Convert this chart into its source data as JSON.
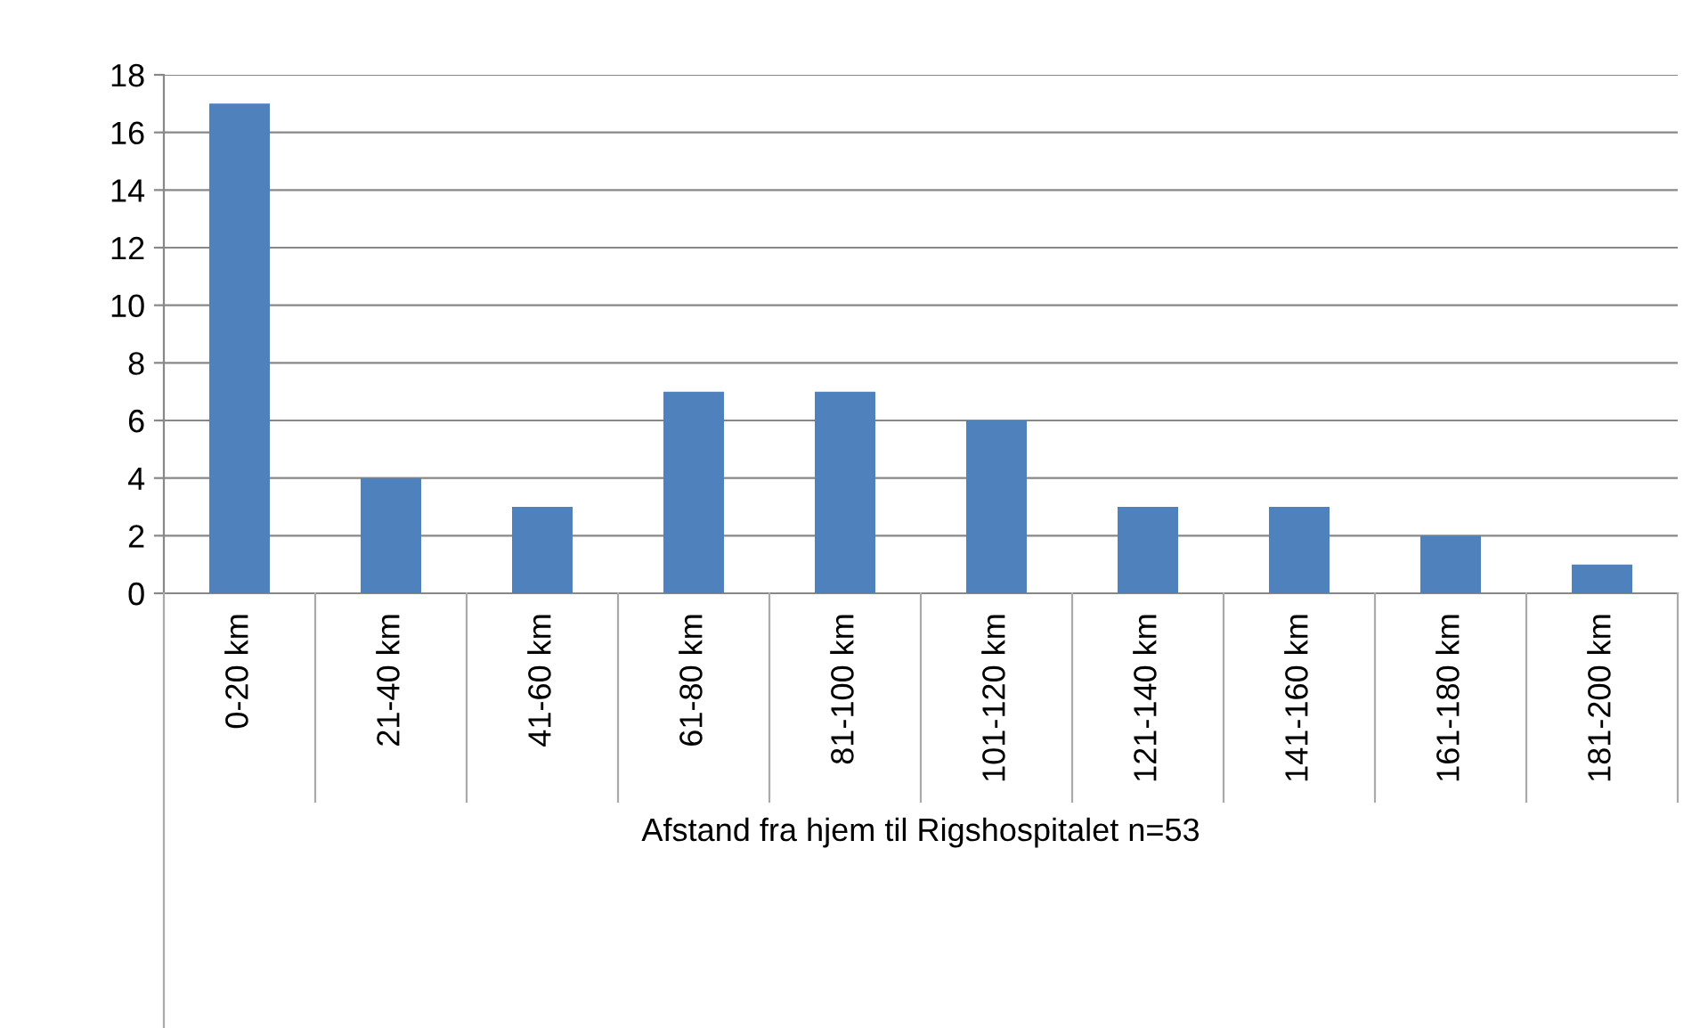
{
  "chart_data": {
    "type": "bar",
    "xlabel": "Afstand fra hjem til Rigshospitalet n=53",
    "categories": [
      "0-20 km",
      "21-40 km",
      "41-60 km",
      "61-80 km",
      "81-100 km",
      "101-120 km",
      "121-140 km",
      "141-160 km",
      "161-180 km",
      "181-200 km"
    ],
    "values": [
      17,
      4,
      3,
      7,
      7,
      6,
      3,
      3,
      2,
      1
    ],
    "color": "#4f81bd",
    "ylim": [
      0,
      18
    ],
    "yticks": [
      0,
      2,
      4,
      6,
      8,
      10,
      12,
      14,
      16,
      18
    ],
    "grid": "y",
    "legend": false
  }
}
